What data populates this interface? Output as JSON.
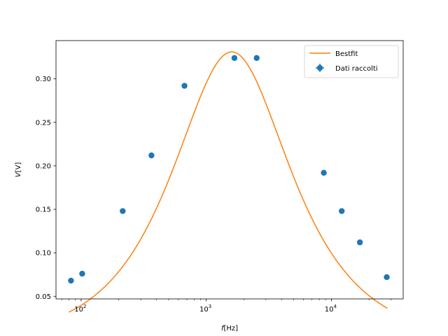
{
  "chart_data": {
    "type": "scatter",
    "title": "",
    "xlabel": {
      "var": "f",
      "unit": "[Hz]"
    },
    "ylabel": {
      "var": "V",
      "unit": "[V]"
    },
    "xscale": "log",
    "xlim": [
      63,
      37500
    ],
    "ylim": [
      0.047,
      0.344
    ],
    "grid": false,
    "legend_position": "top-right",
    "x_ticks": [
      {
        "value": 100,
        "base": "10",
        "exp": "2"
      },
      {
        "value": 1000,
        "base": "10",
        "exp": "3"
      },
      {
        "value": 10000,
        "base": "10",
        "exp": "4"
      }
    ],
    "y_ticks": [
      {
        "value": 0.05,
        "label": "0.05"
      },
      {
        "value": 0.1,
        "label": "0.10"
      },
      {
        "value": 0.15,
        "label": "0.15"
      },
      {
        "value": 0.2,
        "label": "0.20"
      },
      {
        "value": 0.25,
        "label": "0.25"
      },
      {
        "value": 0.3,
        "label": "0.30"
      }
    ],
    "series": [
      {
        "name": "Dati raccolti",
        "kind": "errorbar-points",
        "color": "#1f77b4",
        "x": [
          83,
          102,
          215,
          365,
          670,
          1680,
          2530,
          8700,
          12100,
          16900,
          27700
        ],
        "y": [
          0.068,
          0.076,
          0.148,
          0.212,
          0.292,
          0.324,
          0.324,
          0.192,
          0.148,
          0.112,
          0.072
        ]
      },
      {
        "name": "Bestfit",
        "kind": "line",
        "color": "#ff7f0e",
        "peak_value": 0.331,
        "peak_frequency": 1600,
        "x_range": [
          80,
          28000
        ]
      }
    ]
  }
}
